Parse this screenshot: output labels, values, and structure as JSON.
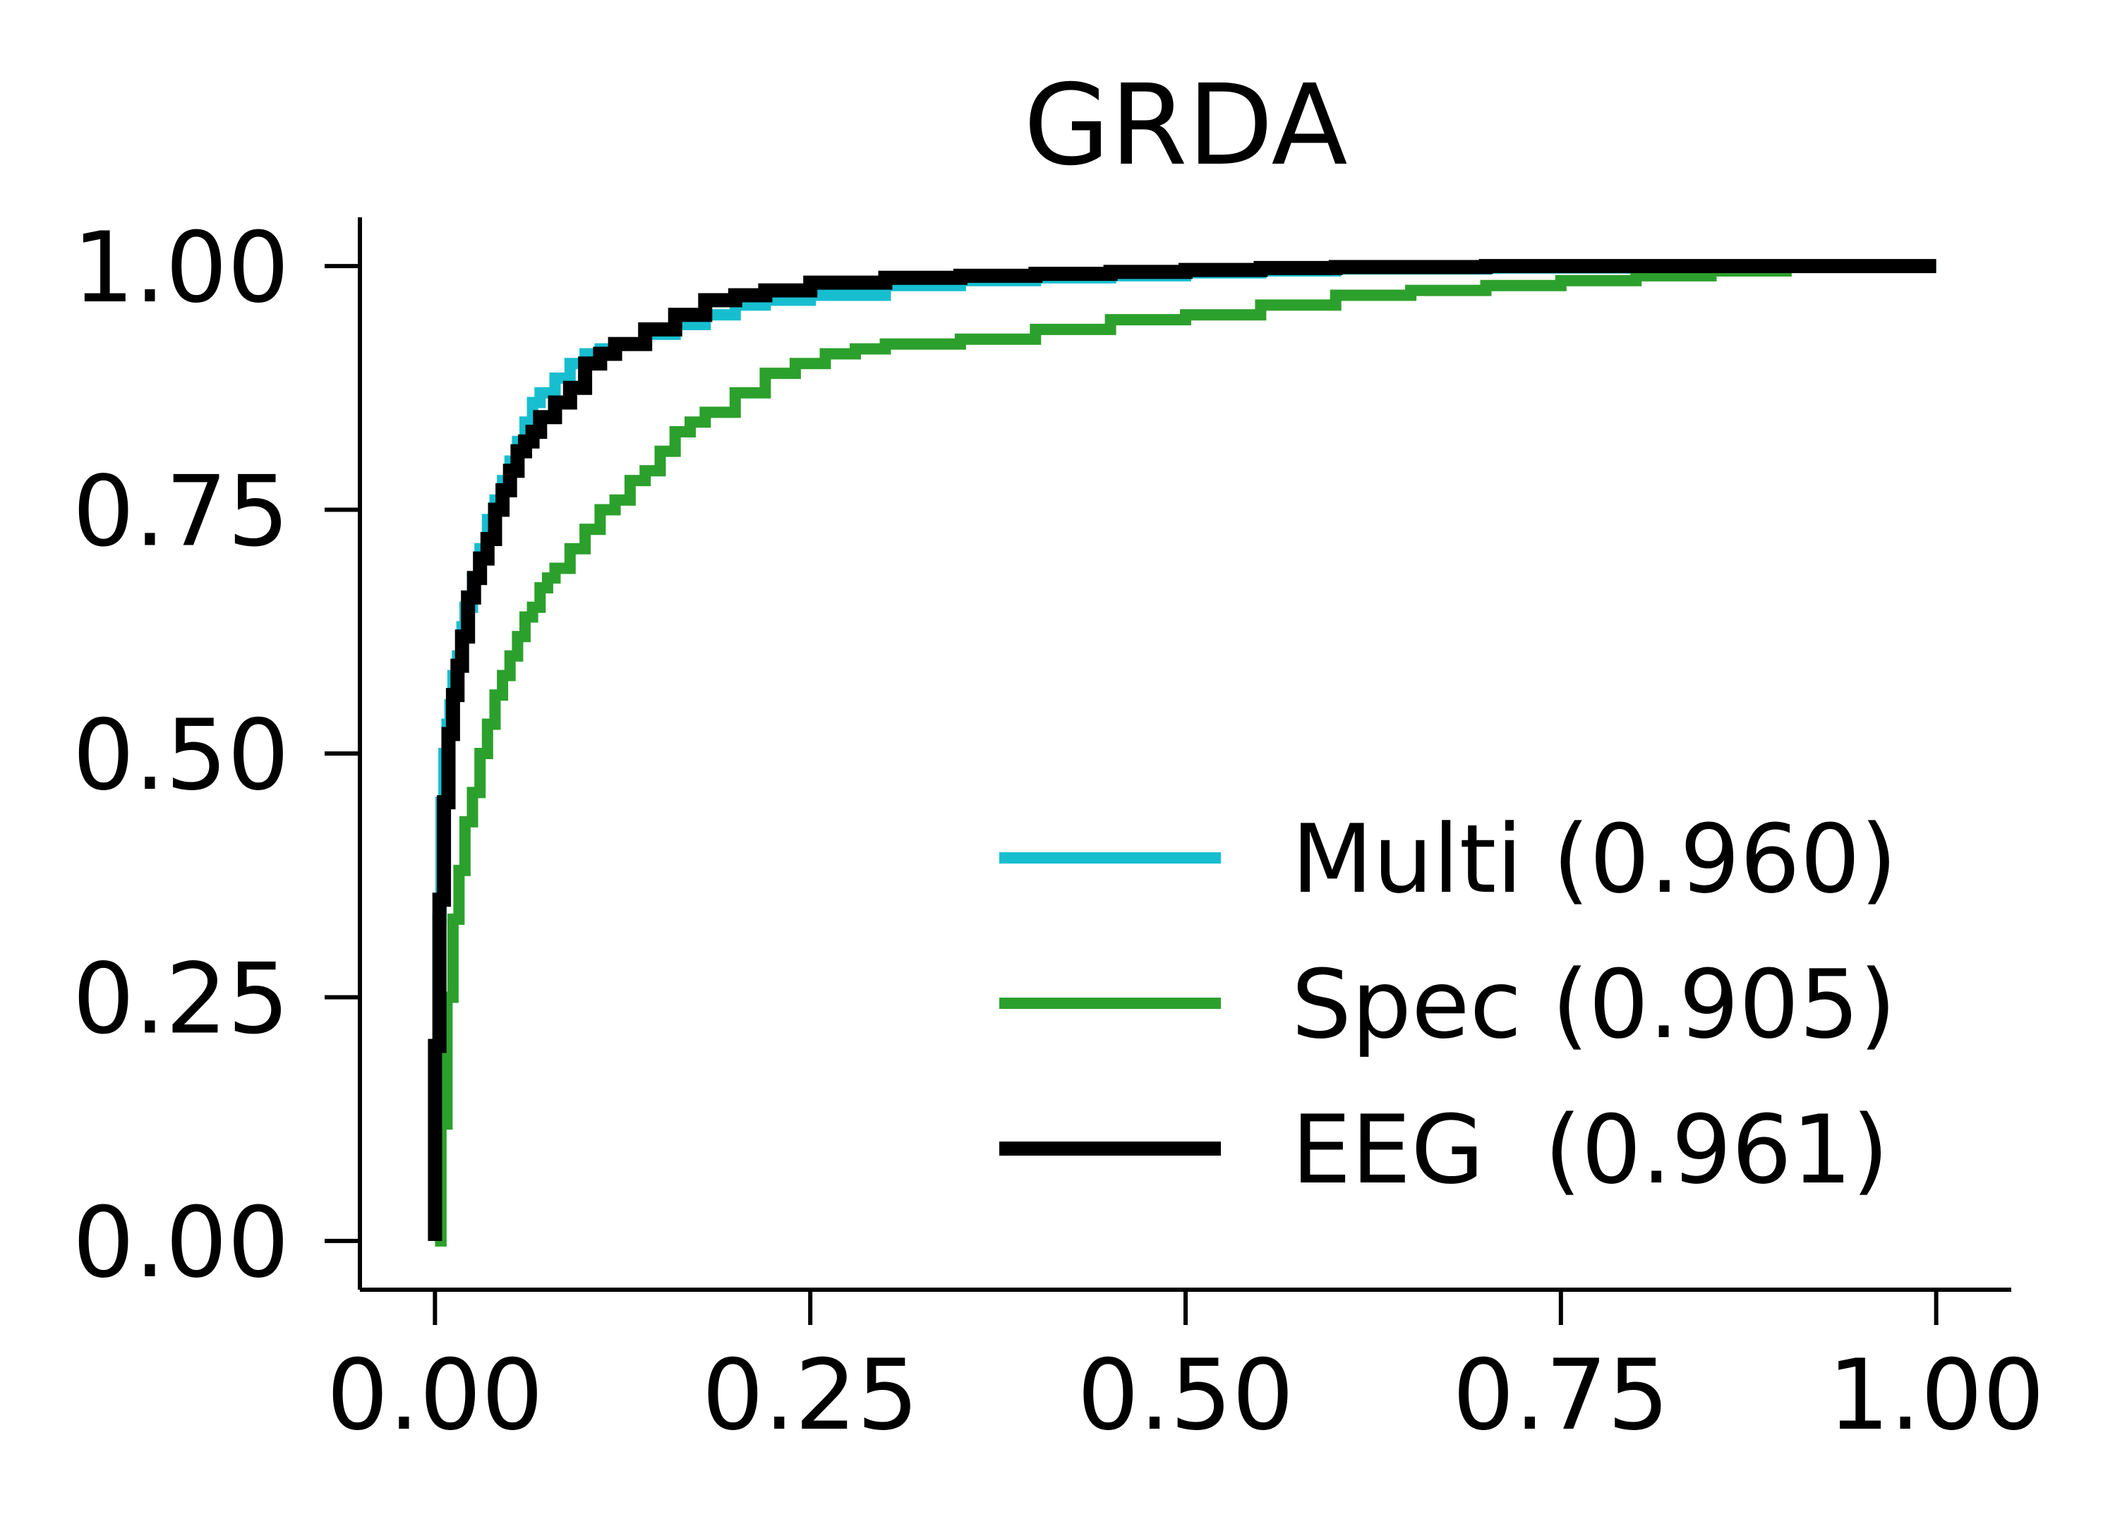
{
  "chart_data": {
    "type": "line",
    "title": "GRDA",
    "xlabel": "",
    "ylabel": "",
    "xlim": [
      -0.05,
      1.05
    ],
    "ylim": [
      -0.05,
      1.05
    ],
    "xticks": [
      "0.00",
      "0.25",
      "0.50",
      "0.75",
      "1.00"
    ],
    "yticks": [
      "0.00",
      "0.25",
      "0.50",
      "0.75",
      "1.00"
    ],
    "grid": false,
    "legend_position": "lower-right",
    "series": [
      {
        "name": "Multi (0.960)",
        "color": "#17becf",
        "x": [
          0.0,
          0.0,
          0.002,
          0.004,
          0.006,
          0.008,
          0.01,
          0.012,
          0.015,
          0.018,
          0.02,
          0.025,
          0.03,
          0.035,
          0.04,
          0.045,
          0.05,
          0.055,
          0.06,
          0.065,
          0.07,
          0.08,
          0.09,
          0.1,
          0.11,
          0.12,
          0.14,
          0.16,
          0.18,
          0.2,
          0.22,
          0.25,
          0.3,
          0.35,
          0.4,
          0.45,
          0.5,
          0.55,
          0.6,
          0.7,
          0.8,
          0.9,
          1.0
        ],
        "y": [
          0.0,
          0.15,
          0.33,
          0.45,
          0.5,
          0.53,
          0.55,
          0.58,
          0.6,
          0.63,
          0.65,
          0.68,
          0.71,
          0.74,
          0.76,
          0.78,
          0.8,
          0.82,
          0.84,
          0.86,
          0.87,
          0.885,
          0.9,
          0.91,
          0.915,
          0.92,
          0.93,
          0.94,
          0.95,
          0.96,
          0.965,
          0.97,
          0.98,
          0.985,
          0.988,
          0.99,
          0.993,
          0.995,
          0.997,
          0.998,
          0.999,
          1.0,
          1.0
        ]
      },
      {
        "name": "Spec (0.905)",
        "color": "#2ca02c",
        "x": [
          0.0,
          0.004,
          0.008,
          0.012,
          0.016,
          0.02,
          0.025,
          0.03,
          0.035,
          0.04,
          0.045,
          0.05,
          0.055,
          0.06,
          0.065,
          0.07,
          0.075,
          0.08,
          0.09,
          0.1,
          0.11,
          0.12,
          0.13,
          0.14,
          0.15,
          0.16,
          0.17,
          0.18,
          0.2,
          0.22,
          0.24,
          0.26,
          0.28,
          0.3,
          0.35,
          0.4,
          0.45,
          0.5,
          0.55,
          0.6,
          0.65,
          0.7,
          0.75,
          0.8,
          0.85,
          0.9,
          1.0
        ],
        "y": [
          0.0,
          0.12,
          0.25,
          0.33,
          0.38,
          0.43,
          0.46,
          0.5,
          0.53,
          0.56,
          0.58,
          0.6,
          0.62,
          0.64,
          0.65,
          0.67,
          0.68,
          0.69,
          0.71,
          0.73,
          0.75,
          0.76,
          0.78,
          0.79,
          0.81,
          0.83,
          0.84,
          0.85,
          0.87,
          0.89,
          0.9,
          0.91,
          0.915,
          0.92,
          0.925,
          0.935,
          0.945,
          0.95,
          0.96,
          0.97,
          0.975,
          0.98,
          0.985,
          0.99,
          0.995,
          1.0,
          1.0
        ]
      },
      {
        "name": "EEG  (0.961)",
        "color": "#000000",
        "x": [
          0.0,
          0.0,
          0.003,
          0.006,
          0.009,
          0.012,
          0.015,
          0.018,
          0.022,
          0.026,
          0.03,
          0.035,
          0.04,
          0.045,
          0.05,
          0.055,
          0.06,
          0.065,
          0.07,
          0.08,
          0.09,
          0.1,
          0.11,
          0.12,
          0.14,
          0.16,
          0.18,
          0.2,
          0.22,
          0.25,
          0.3,
          0.35,
          0.4,
          0.45,
          0.5,
          0.55,
          0.6,
          0.7,
          0.8,
          0.9,
          1.0
        ],
        "y": [
          0.0,
          0.2,
          0.35,
          0.45,
          0.52,
          0.56,
          0.59,
          0.62,
          0.66,
          0.68,
          0.7,
          0.72,
          0.75,
          0.77,
          0.79,
          0.81,
          0.82,
          0.83,
          0.845,
          0.86,
          0.875,
          0.9,
          0.91,
          0.92,
          0.935,
          0.95,
          0.965,
          0.97,
          0.975,
          0.983,
          0.988,
          0.99,
          0.992,
          0.994,
          0.996,
          0.998,
          0.999,
          1.0,
          1.0,
          1.0,
          1.0
        ]
      }
    ]
  }
}
